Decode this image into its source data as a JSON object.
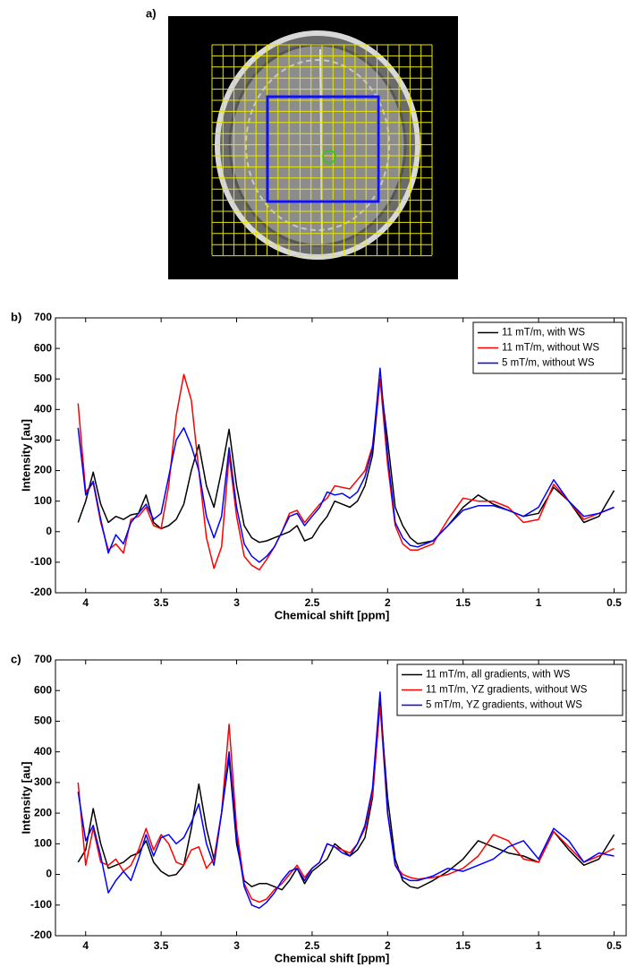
{
  "image_panel": {
    "label": "a)"
  },
  "chart_data": [
    {
      "type": "line",
      "panel_label": "b)",
      "xlabel": "Chemical shift [ppm]",
      "ylabel": "Intensity [au]",
      "xlim": [
        4.2,
        0.42
      ],
      "ylim": [
        -200,
        700
      ],
      "xticks": [
        4,
        3.5,
        3,
        2.5,
        2,
        1.5,
        1,
        0.5
      ],
      "yticks": [
        -200,
        -100,
        0,
        100,
        200,
        300,
        400,
        500,
        600,
        700
      ],
      "legend": "upper right",
      "grid": false,
      "x": [
        4.05,
        4.0,
        3.95,
        3.9,
        3.85,
        3.8,
        3.75,
        3.7,
        3.65,
        3.6,
        3.55,
        3.5,
        3.45,
        3.4,
        3.35,
        3.3,
        3.25,
        3.2,
        3.15,
        3.1,
        3.05,
        3.0,
        2.95,
        2.9,
        2.85,
        2.8,
        2.75,
        2.7,
        2.65,
        2.6,
        2.55,
        2.5,
        2.45,
        2.4,
        2.35,
        2.3,
        2.25,
        2.2,
        2.15,
        2.1,
        2.05,
        2.0,
        1.95,
        1.9,
        1.85,
        1.8,
        1.7,
        1.6,
        1.5,
        1.4,
        1.3,
        1.2,
        1.1,
        1.0,
        0.9,
        0.8,
        0.7,
        0.6,
        0.5
      ],
      "series": [
        {
          "name": "11 mT/m, with WS",
          "color": "#000000",
          "values": [
            30,
            100,
            195,
            90,
            30,
            50,
            40,
            55,
            60,
            120,
            30,
            10,
            20,
            40,
            90,
            200,
            285,
            150,
            80,
            200,
            335,
            150,
            20,
            -20,
            -35,
            -30,
            -20,
            -10,
            0,
            20,
            -30,
            -20,
            20,
            50,
            100,
            90,
            80,
            100,
            150,
            250,
            500,
            300,
            80,
            20,
            -20,
            -40,
            -30,
            20,
            80,
            120,
            90,
            70,
            50,
            60,
            145,
            100,
            30,
            50,
            135
          ]
        },
        {
          "name": "11 mT/m, without WS",
          "color": "#ff0000",
          "values": [
            420,
            130,
            160,
            30,
            -60,
            -40,
            -70,
            40,
            50,
            80,
            20,
            10,
            150,
            380,
            515,
            430,
            200,
            -20,
            -120,
            -50,
            250,
            50,
            -80,
            -110,
            -125,
            -90,
            -50,
            0,
            60,
            70,
            30,
            60,
            90,
            110,
            150,
            145,
            140,
            170,
            200,
            280,
            500,
            220,
            20,
            -40,
            -60,
            -60,
            -40,
            40,
            110,
            100,
            100,
            80,
            30,
            40,
            155,
            100,
            40,
            60,
            80
          ]
        },
        {
          "name": "5 mT/m, without WS",
          "color": "#0000ff",
          "values": [
            340,
            120,
            165,
            40,
            -70,
            -10,
            -40,
            30,
            60,
            90,
            40,
            60,
            180,
            300,
            340,
            280,
            200,
            50,
            -20,
            50,
            275,
            80,
            -40,
            -80,
            -100,
            -80,
            -50,
            0,
            50,
            60,
            20,
            50,
            80,
            130,
            120,
            125,
            110,
            130,
            180,
            270,
            535,
            250,
            30,
            -20,
            -45,
            -50,
            -30,
            20,
            70,
            85,
            85,
            70,
            50,
            80,
            170,
            100,
            50,
            60,
            80
          ]
        }
      ]
    },
    {
      "type": "line",
      "panel_label": "c)",
      "xlabel": "Chemical shift [ppm]",
      "ylabel": "Intensity [au]",
      "xlim": [
        4.2,
        0.42
      ],
      "ylim": [
        -200,
        700
      ],
      "xticks": [
        4,
        3.5,
        3,
        2.5,
        2,
        1.5,
        1,
        0.5
      ],
      "yticks": [
        -200,
        -100,
        0,
        100,
        200,
        300,
        400,
        500,
        600,
        700
      ],
      "legend": "upper right",
      "grid": false,
      "x": [
        4.05,
        4.0,
        3.95,
        3.9,
        3.85,
        3.8,
        3.75,
        3.7,
        3.65,
        3.6,
        3.55,
        3.5,
        3.45,
        3.4,
        3.35,
        3.3,
        3.25,
        3.2,
        3.15,
        3.1,
        3.05,
        3.0,
        2.95,
        2.9,
        2.85,
        2.8,
        2.75,
        2.7,
        2.65,
        2.6,
        2.55,
        2.5,
        2.45,
        2.4,
        2.35,
        2.3,
        2.25,
        2.2,
        2.15,
        2.1,
        2.05,
        2.0,
        1.95,
        1.9,
        1.85,
        1.8,
        1.7,
        1.6,
        1.5,
        1.4,
        1.3,
        1.2,
        1.1,
        1.0,
        0.9,
        0.8,
        0.7,
        0.6,
        0.5
      ],
      "series": [
        {
          "name": "11 mT/m, all gradients, with WS",
          "color": "#000000",
          "values": [
            40,
            80,
            215,
            100,
            20,
            30,
            40,
            60,
            70,
            110,
            40,
            10,
            -5,
            0,
            30,
            150,
            295,
            150,
            50,
            200,
            380,
            100,
            -20,
            -40,
            -30,
            -30,
            -40,
            -50,
            -20,
            20,
            -30,
            10,
            30,
            50,
            100,
            80,
            60,
            80,
            120,
            250,
            560,
            250,
            50,
            -20,
            -40,
            -45,
            -20,
            10,
            50,
            110,
            90,
            70,
            60,
            40,
            140,
            80,
            30,
            50,
            130
          ]
        },
        {
          "name": "11 mT/m, YZ gradients, without WS",
          "color": "#ff0000",
          "values": [
            300,
            30,
            150,
            40,
            30,
            50,
            10,
            30,
            80,
            150,
            80,
            130,
            100,
            40,
            30,
            80,
            90,
            20,
            50,
            200,
            490,
            150,
            -30,
            -80,
            -90,
            -80,
            -50,
            -30,
            0,
            30,
            -10,
            20,
            40,
            100,
            90,
            80,
            70,
            100,
            150,
            260,
            550,
            200,
            30,
            0,
            -10,
            -15,
            -10,
            0,
            20,
            60,
            130,
            110,
            50,
            40,
            140,
            90,
            40,
            60,
            85
          ]
        },
        {
          "name": "5 mT/m, YZ gradients, without WS",
          "color": "#0000ff",
          "values": [
            270,
            110,
            160,
            60,
            -60,
            -20,
            10,
            -20,
            50,
            130,
            60,
            120,
            130,
            100,
            120,
            170,
            230,
            100,
            30,
            200,
            400,
            120,
            -40,
            -100,
            -110,
            -90,
            -60,
            -20,
            10,
            20,
            -20,
            20,
            40,
            100,
            90,
            70,
            60,
            100,
            160,
            280,
            595,
            200,
            30,
            -10,
            -20,
            -20,
            -5,
            20,
            10,
            30,
            50,
            90,
            110,
            50,
            150,
            110,
            40,
            70,
            60
          ]
        }
      ]
    }
  ]
}
